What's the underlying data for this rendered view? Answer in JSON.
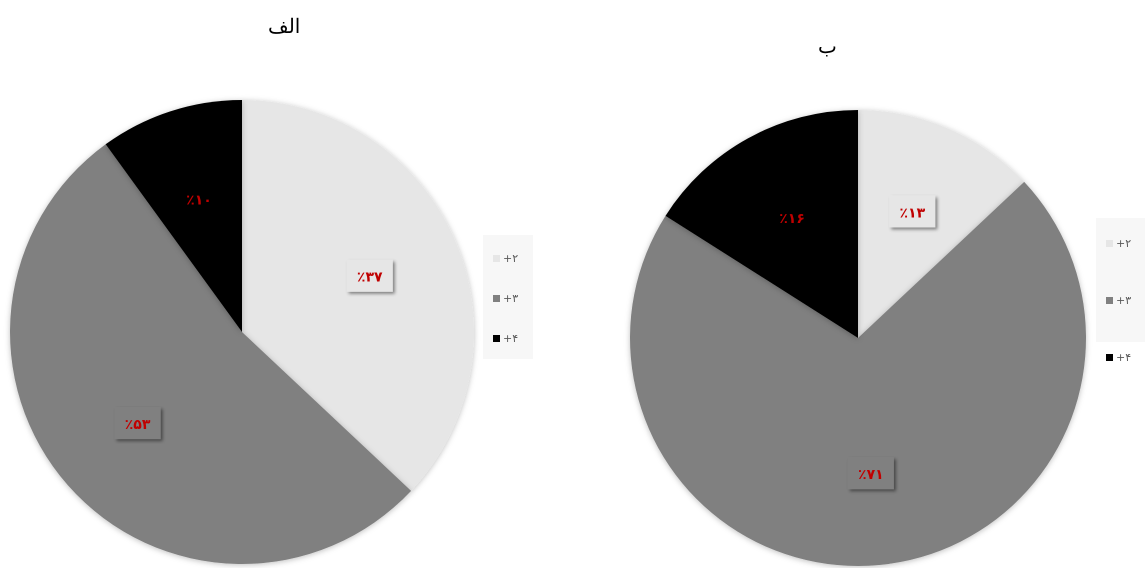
{
  "chart_data": [
    {
      "type": "pie",
      "title": "الف",
      "slices": [
        {
          "label": "+۲",
          "value": 37,
          "data_label": "٪۳۷",
          "color": "#e6e6e6"
        },
        {
          "label": "+۳",
          "value": 53,
          "data_label": "٪۵۳",
          "color": "#808080"
        },
        {
          "label": "+۴",
          "value": 10,
          "data_label": "٪۱۰",
          "color": "#000000"
        }
      ],
      "legend_position": "right"
    },
    {
      "type": "pie",
      "title": "ب",
      "slices": [
        {
          "label": "+۲",
          "value": 13,
          "data_label": "٪۱۳",
          "color": "#e6e6e6"
        },
        {
          "label": "+۳",
          "value": 71,
          "data_label": "٪۷۱",
          "color": "#808080"
        },
        {
          "label": "+۴",
          "value": 16,
          "data_label": "٪۱۶",
          "color": "#000000"
        }
      ],
      "legend_position": "right"
    }
  ],
  "colors": {
    "label_text": "#c00000",
    "label_box": "#808080"
  }
}
